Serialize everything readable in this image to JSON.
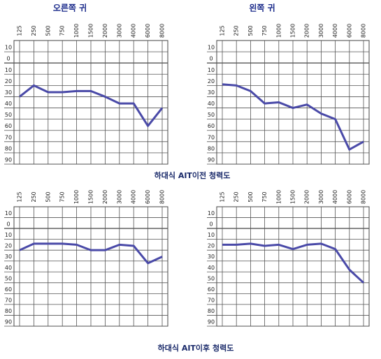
{
  "chart_data": [
    {
      "type": "line",
      "title": "오른쪽 귀",
      "categories": [
        "125",
        "250",
        "500",
        "750",
        "1000",
        "1500",
        "2000",
        "3000",
        "4000",
        "6000",
        "8000"
      ],
      "series": [
        {
          "color": "#4a4aa8",
          "values": [
            30,
            20,
            26,
            26,
            25,
            25,
            30,
            36,
            36,
            56,
            40
          ]
        }
      ],
      "ylim": [
        -20,
        90
      ],
      "yticks": [
        {
          "value": -10,
          "label": "10"
        },
        0,
        10,
        20,
        30,
        40,
        50,
        60,
        70,
        80,
        90
      ],
      "grid": true
    },
    {
      "type": "line",
      "title": "왼쪽 귀",
      "categories": [
        "125",
        "250",
        "500",
        "750",
        "1000",
        "1500",
        "2000",
        "3000",
        "4000",
        "6000",
        "8000"
      ],
      "series": [
        {
          "color": "#4a4aa8",
          "values": [
            19,
            20,
            25,
            36,
            35,
            40,
            37,
            45,
            50,
            77,
            70
          ]
        }
      ],
      "ylim": [
        -20,
        90
      ],
      "yticks": [
        {
          "value": -10,
          "label": "10"
        },
        0,
        10,
        20,
        30,
        40,
        50,
        60,
        70,
        80,
        90
      ],
      "grid": true
    },
    {
      "type": "line",
      "categories": [
        "125",
        "250",
        "500",
        "750",
        "1000",
        "1500",
        "2000",
        "3000",
        "4000",
        "6000",
        "8000"
      ],
      "series": [
        {
          "color": "#4a4aa8",
          "values": [
            20,
            14,
            14,
            14,
            15,
            20,
            20,
            15,
            16,
            32,
            26
          ]
        }
      ],
      "ylim": [
        -20,
        90
      ],
      "yticks": [
        {
          "value": -10,
          "label": "10"
        },
        0,
        10,
        20,
        30,
        40,
        50,
        60,
        70,
        80,
        90
      ],
      "grid": true
    },
    {
      "type": "line",
      "categories": [
        "125",
        "250",
        "500",
        "750",
        "1000",
        "1500",
        "2000",
        "3000",
        "4000",
        "6000",
        "8000"
      ],
      "series": [
        {
          "color": "#4a4aa8",
          "values": [
            15,
            15,
            14,
            16,
            15,
            19,
            15,
            14,
            19,
            38,
            50
          ]
        }
      ],
      "ylim": [
        -20,
        90
      ],
      "yticks": [
        {
          "value": -10,
          "label": "10"
        },
        0,
        10,
        20,
        30,
        40,
        50,
        60,
        70,
        80,
        90
      ],
      "grid": true
    }
  ],
  "captions": [
    "하대식 AIT이전 청력도",
    "하대식 AIT이후 청력도"
  ]
}
